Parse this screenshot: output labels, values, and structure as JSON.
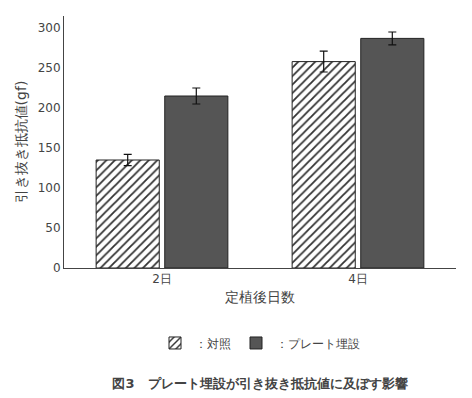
{
  "chart_data": {
    "type": "bar",
    "title": "図3　プレート埋設が引き抜き抵抗値に及ぼす影響",
    "x_label": "定植後日数",
    "y_label": "引き抜き抵抗値(gf)",
    "categories": [
      "2日",
      "4日"
    ],
    "series": [
      {
        "name": "：対照",
        "color": "#ffffff",
        "marker": "hatch",
        "values": [
          135,
          258
        ],
        "errors": [
          7,
          13
        ]
      },
      {
        "name": "：プレート埋設",
        "color": "#555555",
        "marker": "solid",
        "values": [
          215,
          287
        ],
        "errors": [
          10,
          8
        ]
      }
    ],
    "ylim": [
      0,
      315
    ],
    "yticks": [
      0,
      50,
      100,
      150,
      200,
      250,
      300
    ],
    "grid": false,
    "legend": "bottom"
  }
}
